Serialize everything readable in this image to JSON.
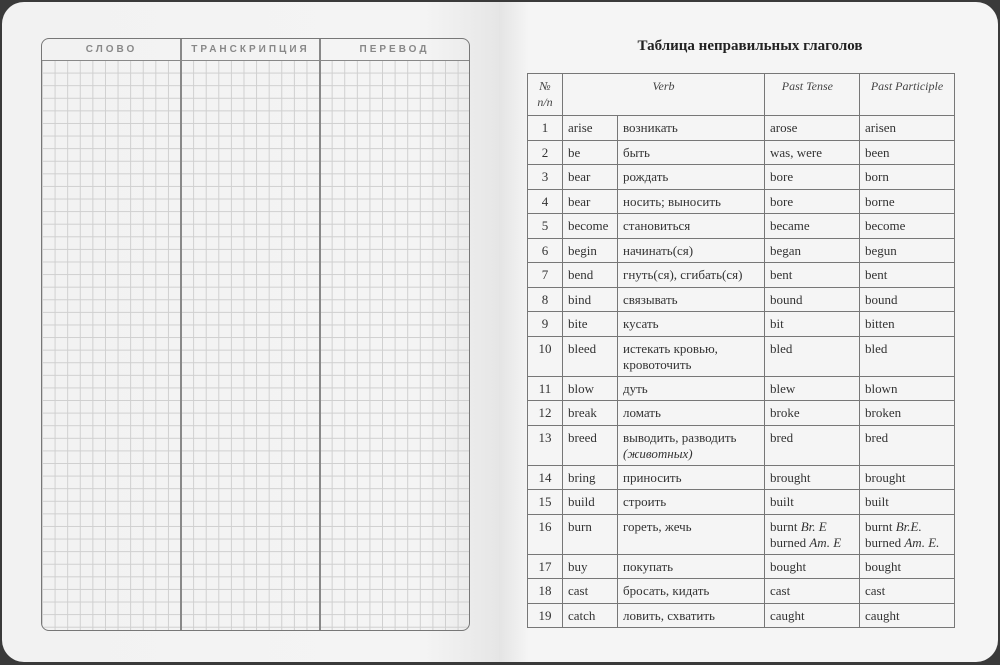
{
  "left_page": {
    "columns": [
      "СЛОВО",
      "ТРАНСКРИПЦИЯ",
      "ПЕРЕВОД"
    ]
  },
  "right_page": {
    "title": "Таблица неправильных глаголов",
    "headers": {
      "number": "№ n/n",
      "verb": "Verb",
      "past_tense": "Past Tense",
      "past_participle": "Past Participle"
    },
    "rows": [
      {
        "n": "1",
        "en": "arise",
        "ru": [
          [
            {
              "t": "возникать"
            }
          ]
        ],
        "pt": [
          [
            {
              "t": "arose"
            }
          ]
        ],
        "pp": [
          [
            {
              "t": "arisen"
            }
          ]
        ]
      },
      {
        "n": "2",
        "en": "be",
        "ru": [
          [
            {
              "t": "быть"
            }
          ]
        ],
        "pt": [
          [
            {
              "t": "was, were"
            }
          ]
        ],
        "pp": [
          [
            {
              "t": "been"
            }
          ]
        ]
      },
      {
        "n": "3",
        "en": "bear",
        "ru": [
          [
            {
              "t": "рождать"
            }
          ]
        ],
        "pt": [
          [
            {
              "t": "bore"
            }
          ]
        ],
        "pp": [
          [
            {
              "t": "born"
            }
          ]
        ]
      },
      {
        "n": "4",
        "en": "bear",
        "ru": [
          [
            {
              "t": "носить; выносить"
            }
          ]
        ],
        "pt": [
          [
            {
              "t": "bore"
            }
          ]
        ],
        "pp": [
          [
            {
              "t": "borne"
            }
          ]
        ]
      },
      {
        "n": "5",
        "en": "become",
        "ru": [
          [
            {
              "t": "становиться"
            }
          ]
        ],
        "pt": [
          [
            {
              "t": "became"
            }
          ]
        ],
        "pp": [
          [
            {
              "t": "become"
            }
          ]
        ]
      },
      {
        "n": "6",
        "en": "begin",
        "ru": [
          [
            {
              "t": "начинать(ся)"
            }
          ]
        ],
        "pt": [
          [
            {
              "t": "began"
            }
          ]
        ],
        "pp": [
          [
            {
              "t": "begun"
            }
          ]
        ]
      },
      {
        "n": "7",
        "en": "bend",
        "ru": [
          [
            {
              "t": "гнуть(ся), сгибать(ся)"
            }
          ]
        ],
        "pt": [
          [
            {
              "t": "bent"
            }
          ]
        ],
        "pp": [
          [
            {
              "t": "bent"
            }
          ]
        ]
      },
      {
        "n": "8",
        "en": "bind",
        "ru": [
          [
            {
              "t": "связывать"
            }
          ]
        ],
        "pt": [
          [
            {
              "t": "bound"
            }
          ]
        ],
        "pp": [
          [
            {
              "t": "bound"
            }
          ]
        ]
      },
      {
        "n": "9",
        "en": "bite",
        "ru": [
          [
            {
              "t": "кусать"
            }
          ]
        ],
        "pt": [
          [
            {
              "t": "bit"
            }
          ]
        ],
        "pp": [
          [
            {
              "t": "bitten"
            }
          ]
        ]
      },
      {
        "n": "10",
        "en": "bleed",
        "ru": [
          [
            {
              "t": "истекать кровью,"
            }
          ],
          [
            {
              "t": "кровоточить"
            }
          ]
        ],
        "pt": [
          [
            {
              "t": "bled"
            }
          ]
        ],
        "pp": [
          [
            {
              "t": "bled"
            }
          ]
        ]
      },
      {
        "n": "11",
        "en": "blow",
        "ru": [
          [
            {
              "t": "дуть"
            }
          ]
        ],
        "pt": [
          [
            {
              "t": "blew"
            }
          ]
        ],
        "pp": [
          [
            {
              "t": "blown"
            }
          ]
        ]
      },
      {
        "n": "12",
        "en": "break",
        "ru": [
          [
            {
              "t": "ломать"
            }
          ]
        ],
        "pt": [
          [
            {
              "t": "broke"
            }
          ]
        ],
        "pp": [
          [
            {
              "t": "broken"
            }
          ]
        ]
      },
      {
        "n": "13",
        "en": "breed",
        "ru": [
          [
            {
              "t": "выводить, разводить"
            }
          ],
          [
            {
              "t": "(животных)",
              "i": true
            }
          ]
        ],
        "pt": [
          [
            {
              "t": "bred"
            }
          ]
        ],
        "pp": [
          [
            {
              "t": "bred"
            }
          ]
        ]
      },
      {
        "n": "14",
        "en": "bring",
        "ru": [
          [
            {
              "t": "приносить"
            }
          ]
        ],
        "pt": [
          [
            {
              "t": "brought"
            }
          ]
        ],
        "pp": [
          [
            {
              "t": "brought"
            }
          ]
        ]
      },
      {
        "n": "15",
        "en": "build",
        "ru": [
          [
            {
              "t": "строить"
            }
          ]
        ],
        "pt": [
          [
            {
              "t": "built"
            }
          ]
        ],
        "pp": [
          [
            {
              "t": "built"
            }
          ]
        ]
      },
      {
        "n": "16",
        "en": "burn",
        "ru": [
          [
            {
              "t": "гореть, жечь"
            }
          ]
        ],
        "pt": [
          [
            {
              "t": "burnt "
            },
            {
              "t": "Br. E",
              "i": true
            }
          ],
          [
            {
              "t": "burned "
            },
            {
              "t": "Am. E",
              "i": true
            }
          ]
        ],
        "pp": [
          [
            {
              "t": "burnt "
            },
            {
              "t": "Br.E.",
              "i": true
            }
          ],
          [
            {
              "t": "burned "
            },
            {
              "t": "Am. E.",
              "i": true
            }
          ]
        ]
      },
      {
        "n": "17",
        "en": "buy",
        "ru": [
          [
            {
              "t": "покупать"
            }
          ]
        ],
        "pt": [
          [
            {
              "t": "bought"
            }
          ]
        ],
        "pp": [
          [
            {
              "t": "bought"
            }
          ]
        ]
      },
      {
        "n": "18",
        "en": "cast",
        "ru": [
          [
            {
              "t": "бросать, кидать"
            }
          ]
        ],
        "pt": [
          [
            {
              "t": "cast"
            }
          ]
        ],
        "pp": [
          [
            {
              "t": "cast"
            }
          ]
        ]
      },
      {
        "n": "19",
        "en": "catch",
        "ru": [
          [
            {
              "t": "ловить, схватить"
            }
          ]
        ],
        "pt": [
          [
            {
              "t": "caught"
            }
          ]
        ],
        "pp": [
          [
            {
              "t": "caught"
            }
          ]
        ]
      }
    ]
  }
}
